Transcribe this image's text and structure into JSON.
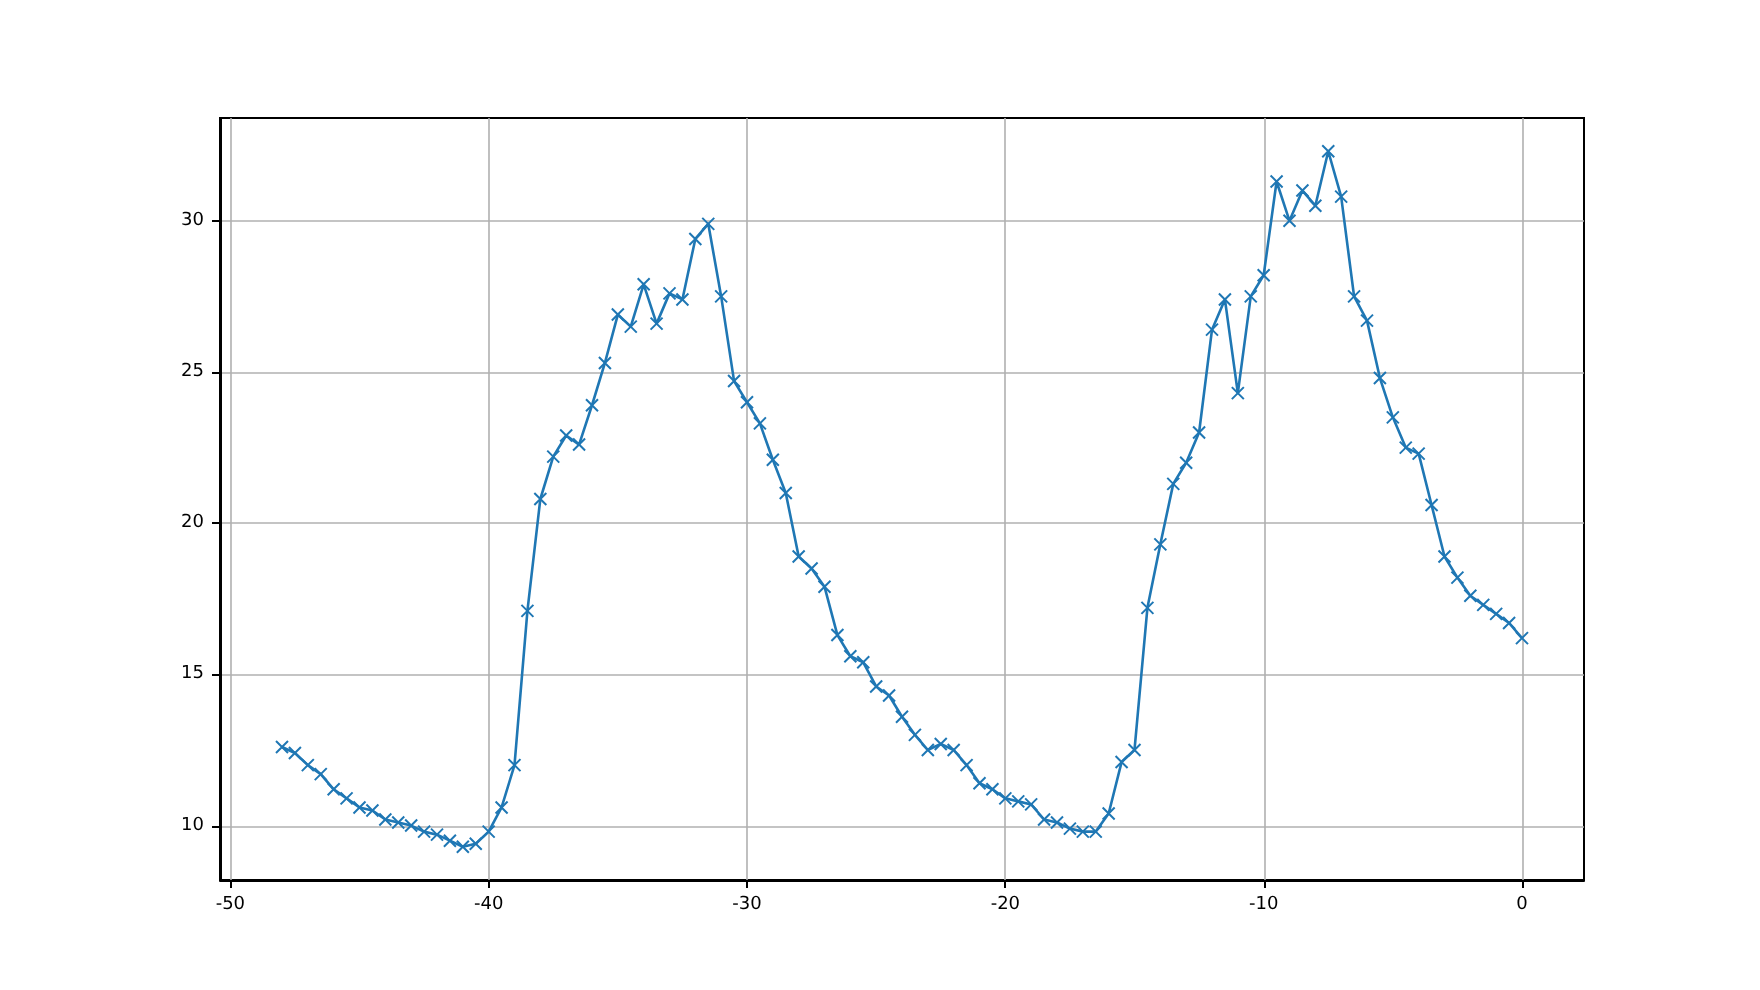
{
  "chart_data": {
    "type": "line",
    "marker": "cross",
    "grid": true,
    "x": [
      -48,
      -47.5,
      -47,
      -46.5,
      -46,
      -45.5,
      -45,
      -44.5,
      -44,
      -43.5,
      -43,
      -42.5,
      -42,
      -41.5,
      -41,
      -40.5,
      -40,
      -39.5,
      -39,
      -38.5,
      -38,
      -37.5,
      -37,
      -36.5,
      -36,
      -35.5,
      -35,
      -34.5,
      -34,
      -33.5,
      -33,
      -32.5,
      -32,
      -31.5,
      -31,
      -30.5,
      -30,
      -29.5,
      -29,
      -28.5,
      -28,
      -27.5,
      -27,
      -26.5,
      -26,
      -25.5,
      -25,
      -24.5,
      -24,
      -23.5,
      -23,
      -22.5,
      -22,
      -21.5,
      -21,
      -20.5,
      -20,
      -19.5,
      -19,
      -18.5,
      -18,
      -17.5,
      -17,
      -16.5,
      -16,
      -15.5,
      -15,
      -14.5,
      -14,
      -13.5,
      -13,
      -12.5,
      -12,
      -11.5,
      -11,
      -10.5,
      -10,
      -9.5,
      -9,
      -8.5,
      -8,
      -7.5,
      -7,
      -6.5,
      -6,
      -5.5,
      -5,
      -4.5,
      -4,
      -3.5,
      -3,
      -2.5,
      -2,
      -1.5,
      -1,
      -0.5,
      0
    ],
    "series": [
      {
        "color": "#1f77b4",
        "values": [
          12.6,
          12.4,
          12.0,
          11.7,
          11.2,
          10.9,
          10.6,
          10.5,
          10.2,
          10.1,
          10.0,
          9.8,
          9.7,
          9.5,
          9.3,
          9.4,
          9.8,
          10.6,
          12.0,
          17.1,
          20.8,
          22.2,
          22.9,
          22.6,
          23.9,
          25.3,
          26.9,
          26.5,
          27.9,
          26.6,
          27.6,
          27.4,
          29.4,
          29.9,
          27.5,
          24.7,
          24.0,
          23.3,
          22.1,
          21.0,
          18.9,
          18.5,
          17.9,
          16.3,
          15.6,
          15.4,
          14.6,
          14.3,
          13.6,
          13.0,
          12.5,
          12.7,
          12.5,
          12.0,
          11.4,
          11.2,
          10.9,
          10.8,
          10.7,
          10.2,
          10.1,
          9.9,
          9.8,
          9.8,
          10.4,
          12.1,
          12.5,
          17.2,
          19.3,
          21.3,
          22.0,
          23.0,
          26.4,
          27.4,
          24.3,
          27.5,
          28.2,
          31.3,
          30.0,
          31.0,
          30.5,
          32.3,
          30.8,
          27.5,
          26.7,
          24.8,
          23.5,
          22.5,
          22.3,
          20.6,
          18.9,
          18.2,
          17.6,
          17.3,
          17.0,
          16.7,
          16.2
        ]
      }
    ],
    "xlim": [
      -50.4,
      2.4
    ],
    "xticks": [
      -50,
      -40,
      -30,
      -20,
      -10,
      0
    ],
    "ylim": [
      8.2,
      33.4
    ],
    "yticks": [
      10,
      15,
      20,
      25,
      30
    ]
  }
}
